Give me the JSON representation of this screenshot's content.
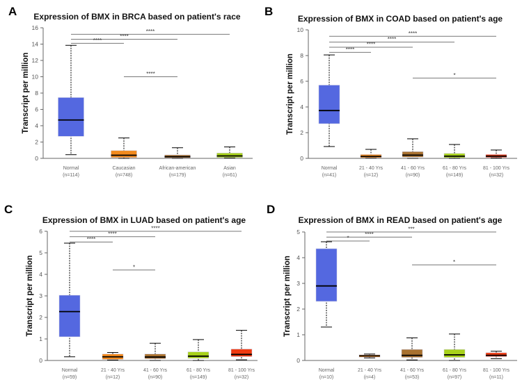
{
  "chart_data": [
    {
      "panel": "A",
      "type": "box",
      "title": "Expression of BMX in BRCA based on patient's race",
      "ylabel": "Transcript per million",
      "ylim": [
        0,
        16
      ],
      "yticks": [
        0,
        2,
        4,
        6,
        8,
        10,
        12,
        14,
        16
      ],
      "categories": [
        "Normal",
        "Caucasian",
        "African-american",
        "Asian"
      ],
      "n_labels": [
        "(n=114)",
        "(n=748)",
        "(n=179)",
        "(n=61)"
      ],
      "colors": [
        "#5468e0",
        "#f28a1e",
        "#a8712f",
        "#a8d21a"
      ],
      "boxes": [
        {
          "min": 0.45,
          "q1": 2.7,
          "median": 4.7,
          "q3": 7.45,
          "max": 13.85
        },
        {
          "min": 0.0,
          "q1": 0.1,
          "median": 0.38,
          "q3": 0.95,
          "max": 2.5
        },
        {
          "min": 0.0,
          "q1": 0.05,
          "median": 0.2,
          "q3": 0.42,
          "max": 1.3
        },
        {
          "min": 0.05,
          "q1": 0.1,
          "median": 0.3,
          "q3": 0.65,
          "max": 1.4
        }
      ],
      "significance": [
        {
          "from": 0,
          "to": 3,
          "y": 15.2,
          "label": "****"
        },
        {
          "from": 0,
          "to": 2,
          "y": 14.6,
          "label": "****"
        },
        {
          "from": 0,
          "to": 1,
          "y": 14.1,
          "label": "****"
        },
        {
          "from": 1,
          "to": 2,
          "y": 10.0,
          "label": "****"
        }
      ]
    },
    {
      "panel": "B",
      "type": "box",
      "title": "Expression of BMX in COAD based on patient's age",
      "ylabel": "Transcript per million",
      "ylim": [
        0,
        10
      ],
      "yticks": [
        0,
        2,
        4,
        6,
        8,
        10
      ],
      "categories": [
        "Normal",
        "21 - 40 Yrs",
        "41 - 60 Yrs",
        "61 - 80 Yrs",
        "81 - 100 Yrs"
      ],
      "n_labels": [
        "(n=41)",
        "(n=12)",
        "(n=90)",
        "(n=149)",
        "(n=32)"
      ],
      "colors": [
        "#5468e0",
        "#f28a1e",
        "#a8712f",
        "#a8d21a",
        "#f03a10"
      ],
      "boxes": [
        {
          "min": 0.92,
          "q1": 2.7,
          "median": 3.72,
          "q3": 5.7,
          "max": 8.05
        },
        {
          "min": 0.02,
          "q1": 0.05,
          "median": 0.15,
          "q3": 0.3,
          "max": 0.7
        },
        {
          "min": 0.0,
          "q1": 0.1,
          "median": 0.25,
          "q3": 0.52,
          "max": 1.52
        },
        {
          "min": 0.0,
          "q1": 0.05,
          "median": 0.17,
          "q3": 0.38,
          "max": 1.08
        },
        {
          "min": 0.02,
          "q1": 0.07,
          "median": 0.17,
          "q3": 0.3,
          "max": 0.65
        }
      ],
      "significance": [
        {
          "from": 0,
          "to": 4,
          "y": 9.5,
          "label": "****"
        },
        {
          "from": 0,
          "to": 3,
          "y": 9.05,
          "label": "****"
        },
        {
          "from": 0,
          "to": 2,
          "y": 8.65,
          "label": "****"
        },
        {
          "from": 0,
          "to": 1,
          "y": 8.25,
          "label": "****"
        },
        {
          "from": 2,
          "to": 4,
          "y": 6.25,
          "label": "*"
        }
      ]
    },
    {
      "panel": "C",
      "type": "box",
      "title": "Expression of BMX in LUAD based on patient's age",
      "ylabel": "Transcript per million",
      "ylim": [
        0,
        6
      ],
      "yticks": [
        0,
        1,
        2,
        3,
        4,
        5,
        6
      ],
      "categories": [
        "Normal",
        "21 - 40 Yrs",
        "41 - 60 Yrs",
        "61 - 80 Yrs",
        "81 - 100 Yrs"
      ],
      "n_labels": [
        "(n=59)",
        "(n=12)",
        "(n=90)",
        "(n=149)",
        "(n=32)"
      ],
      "colors": [
        "#5468e0",
        "#f28a1e",
        "#a8712f",
        "#a8d21a",
        "#f03a10"
      ],
      "boxes": [
        {
          "min": 0.17,
          "q1": 1.1,
          "median": 2.27,
          "q3": 3.03,
          "max": 5.45
        },
        {
          "min": 0.02,
          "q1": 0.05,
          "median": 0.17,
          "q3": 0.3,
          "max": 0.37
        },
        {
          "min": 0.0,
          "q1": 0.08,
          "median": 0.16,
          "q3": 0.3,
          "max": 0.8
        },
        {
          "min": 0.0,
          "q1": 0.1,
          "median": 0.2,
          "q3": 0.4,
          "max": 0.97
        },
        {
          "min": 0.03,
          "q1": 0.18,
          "median": 0.28,
          "q3": 0.53,
          "max": 1.4
        }
      ],
      "significance": [
        {
          "from": 0,
          "to": 4,
          "y": 6.0,
          "label": "****"
        },
        {
          "from": 0,
          "to": 2,
          "y": 5.75,
          "label": "****"
        },
        {
          "from": 0,
          "to": 1,
          "y": 5.5,
          "label": "****"
        },
        {
          "from": 1,
          "to": 2,
          "y": 4.2,
          "label": "*"
        }
      ]
    },
    {
      "panel": "D",
      "type": "box",
      "title": "Expression of BMX in READ based on patient's age",
      "ylabel": "Transcript per million",
      "ylim": [
        0,
        5
      ],
      "yticks": [
        0,
        1,
        2,
        3,
        4,
        5
      ],
      "categories": [
        "Normal",
        "21 - 40 Yrs",
        "41 - 60 Yrs",
        "61 - 80 Yrs",
        "81 - 100 Yrs"
      ],
      "n_labels": [
        "(n=10)",
        "(n=4)",
        "(n=53)",
        "(n=97)",
        "(n=11)"
      ],
      "colors": [
        "#5468e0",
        "#f28a1e",
        "#a8712f",
        "#a8d21a",
        "#f03a10"
      ],
      "boxes": [
        {
          "min": 1.3,
          "q1": 2.3,
          "median": 2.9,
          "q3": 4.35,
          "max": 4.62
        },
        {
          "min": 0.1,
          "q1": 0.13,
          "median": 0.18,
          "q3": 0.22,
          "max": 0.25
        },
        {
          "min": 0.02,
          "q1": 0.12,
          "median": 0.2,
          "q3": 0.43,
          "max": 0.88
        },
        {
          "min": 0.0,
          "q1": 0.12,
          "median": 0.22,
          "q3": 0.43,
          "max": 1.03
        },
        {
          "min": 0.07,
          "q1": 0.15,
          "median": 0.2,
          "q3": 0.3,
          "max": 0.36
        }
      ],
      "significance": [
        {
          "from": 0,
          "to": 4,
          "y": 5.0,
          "label": "***"
        },
        {
          "from": 0,
          "to": 2,
          "y": 4.8,
          "label": "****"
        },
        {
          "from": 0,
          "to": 1,
          "y": 4.65,
          "label": "*"
        },
        {
          "from": 2,
          "to": 4,
          "y": 3.72,
          "label": "*"
        }
      ]
    }
  ]
}
